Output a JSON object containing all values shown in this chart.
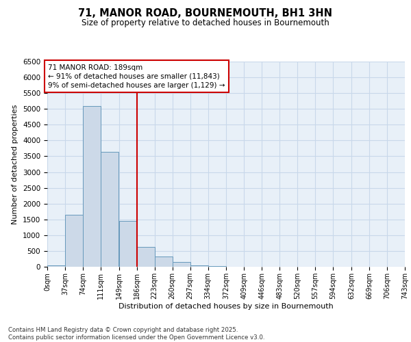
{
  "title": "71, MANOR ROAD, BOURNEMOUTH, BH1 3HN",
  "subtitle": "Size of property relative to detached houses in Bournemouth",
  "xlabel": "Distribution of detached houses by size in Bournemouth",
  "ylabel": "Number of detached properties",
  "footer_line1": "Contains HM Land Registry data © Crown copyright and database right 2025.",
  "footer_line2": "Contains public sector information licensed under the Open Government Licence v3.0.",
  "annotation_line1": "71 MANOR ROAD: 189sqm",
  "annotation_line2": "← 91% of detached houses are smaller (11,843)",
  "annotation_line3": "9% of semi-detached houses are larger (1,129) →",
  "bins": [
    0,
    37,
    74,
    111,
    149,
    186,
    223,
    260,
    297,
    334,
    372,
    409,
    446,
    483,
    520,
    557,
    594,
    632,
    669,
    706,
    743
  ],
  "bin_labels": [
    "0sqm",
    "37sqm",
    "74sqm",
    "111sqm",
    "149sqm",
    "186sqm",
    "223sqm",
    "260sqm",
    "297sqm",
    "334sqm",
    "372sqm",
    "409sqm",
    "446sqm",
    "483sqm",
    "520sqm",
    "557sqm",
    "594sqm",
    "632sqm",
    "669sqm",
    "706sqm",
    "743sqm"
  ],
  "counts": [
    50,
    1650,
    5100,
    3650,
    1450,
    620,
    320,
    150,
    50,
    20,
    5,
    0,
    0,
    0,
    0,
    0,
    0,
    0,
    0,
    0
  ],
  "bar_facecolor": "#ccd9e8",
  "bar_edgecolor": "#6699bb",
  "vline_color": "#cc0000",
  "vline_x": 186,
  "annotation_box_color": "#cc0000",
  "grid_color": "#c8d8ea",
  "background_color": "#e8f0f8",
  "ylim": [
    0,
    6500
  ],
  "yticks": [
    0,
    500,
    1000,
    1500,
    2000,
    2500,
    3000,
    3500,
    4000,
    4500,
    5000,
    5500,
    6000,
    6500
  ]
}
